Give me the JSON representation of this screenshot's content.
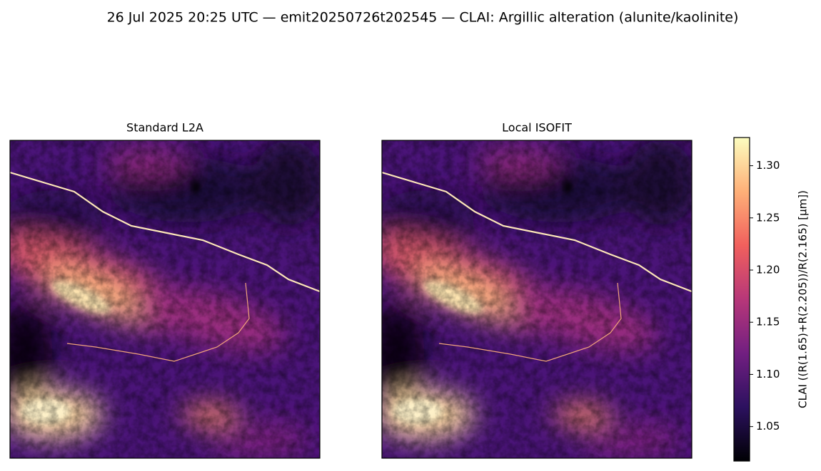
{
  "chart_data": {
    "type": "image",
    "title": "26 Jul 2025 20:25 UTC — emit20250726t202545 — CLAI: Argillic alteration (alunite/kaolinite)",
    "panels": [
      {
        "title": "Standard L2A"
      },
      {
        "title": "Local ISOFIT"
      }
    ],
    "colormap": "magma",
    "colorbar": {
      "label": "CLAI  ((R(1.65)+R(2.205))/R(2.165)  [μm])",
      "lim": [
        1.017,
        1.327
      ],
      "ticks": [
        1.05,
        {
          "value": 1.1,
          "label": "1.10"
        },
        1.15,
        {
          "value": 1.2,
          "label": "1.20"
        },
        1.25,
        {
          "value": 1.3,
          "label": "1.30"
        }
      ]
    }
  }
}
